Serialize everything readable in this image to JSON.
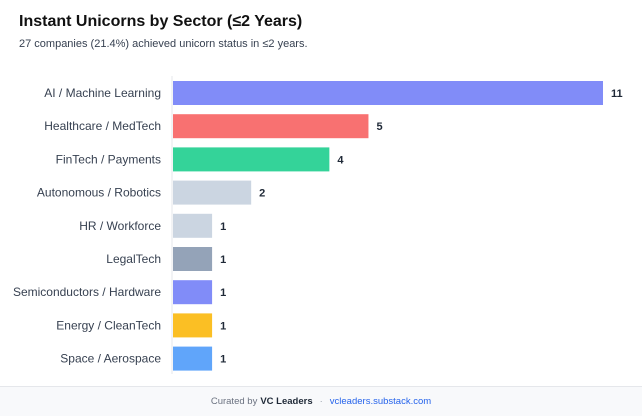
{
  "header": {
    "title": "Instant Unicorns by Sector (≤2 Years)",
    "subtitle": "27 companies (21.4%) achieved unicorn status in ≤2 years."
  },
  "chart_data": {
    "type": "bar",
    "orientation": "horizontal",
    "title": "Instant Unicorns by Sector (≤2 Years)",
    "categories": [
      "AI / Machine Learning",
      "Healthcare / MedTech",
      "FinTech / Payments",
      "Autonomous / Robotics",
      "HR / Workforce",
      "LegalTech",
      "Semiconductors / Hardware",
      "Energy / CleanTech",
      "Space / Aerospace"
    ],
    "values": [
      11,
      5,
      4,
      2,
      1,
      1,
      1,
      1,
      1
    ],
    "colors": [
      "#818cf8",
      "#f87171",
      "#34d399",
      "#cbd5e1",
      "#cbd5e1",
      "#94a3b8",
      "#818cf8",
      "#fbbf24",
      "#60a5fa"
    ],
    "xlim": [
      0,
      11
    ],
    "grid": false,
    "data_labels": true
  },
  "footer": {
    "prefix": "Curated by",
    "brand": "VC Leaders",
    "separator": "·",
    "link": "vcleaders.substack.com"
  }
}
